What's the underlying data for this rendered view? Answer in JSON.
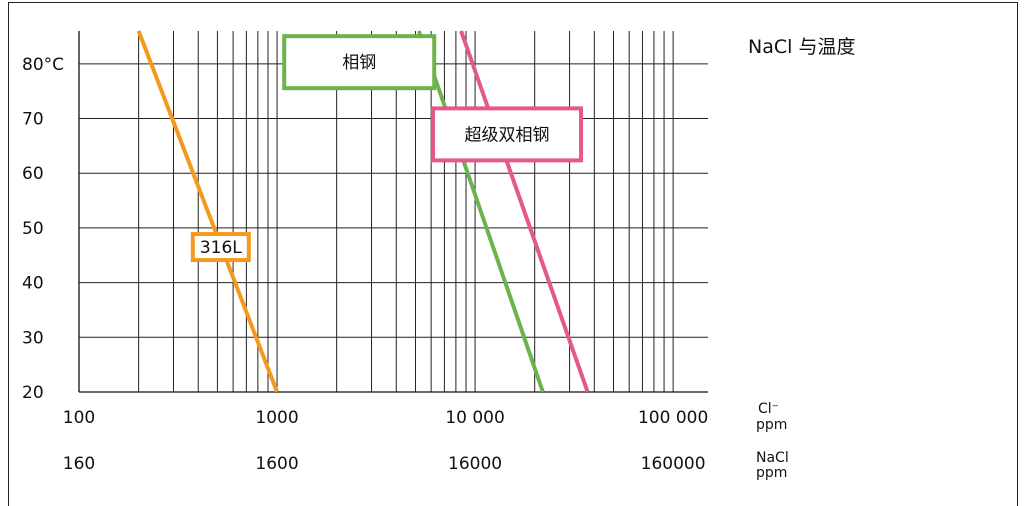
{
  "chart_data": {
    "type": "line",
    "title": "NaCl 与温度",
    "x_scale": "log",
    "x_range": [
      100,
      150000
    ],
    "y_range": [
      20,
      86
    ],
    "grid": true,
    "y_ticks": [
      {
        "value": 20,
        "label": "20"
      },
      {
        "value": 30,
        "label": "30"
      },
      {
        "value": 40,
        "label": "40"
      },
      {
        "value": 50,
        "label": "50"
      },
      {
        "value": 60,
        "label": "60"
      },
      {
        "value": 70,
        "label": "70"
      },
      {
        "value": 80,
        "label": "80°C"
      }
    ],
    "x_ticks_cl": [
      {
        "value": 100,
        "label": "100"
      },
      {
        "value": 1000,
        "label": "1000"
      },
      {
        "value": 10000,
        "label": "10 000"
      },
      {
        "value": 100000,
        "label": "100 000"
      }
    ],
    "x_ticks_nacl": [
      {
        "value": 100,
        "label": "160"
      },
      {
        "value": 1000,
        "label": "1600"
      },
      {
        "value": 10000,
        "label": "16000"
      },
      {
        "value": 100000,
        "label": "160000"
      }
    ],
    "x_unit_cl": {
      "line1": "Cl⁻",
      "line2": "ppm"
    },
    "x_unit_nacl": {
      "line1": "NaCl",
      "line2": "ppm"
    },
    "series": [
      {
        "name": "316L",
        "color": "#f39a1e",
        "points": [
          [
            200,
            86
          ],
          [
            1000,
            20
          ]
        ],
        "label_at": {
          "x": 520,
          "y": 46.5
        }
      },
      {
        "name": "相钢",
        "color": "#6db34b",
        "points": [
          [
            5200,
            86
          ],
          [
            22000,
            20
          ]
        ],
        "label_at": {
          "x": 2600,
          "y": 80.3
        }
      },
      {
        "name": "超级双相钢",
        "color": "#e5588c",
        "points": [
          [
            8500,
            86
          ],
          [
            37000,
            20
          ]
        ],
        "label_at": {
          "x": 14500,
          "y": 67.1
        }
      }
    ]
  }
}
